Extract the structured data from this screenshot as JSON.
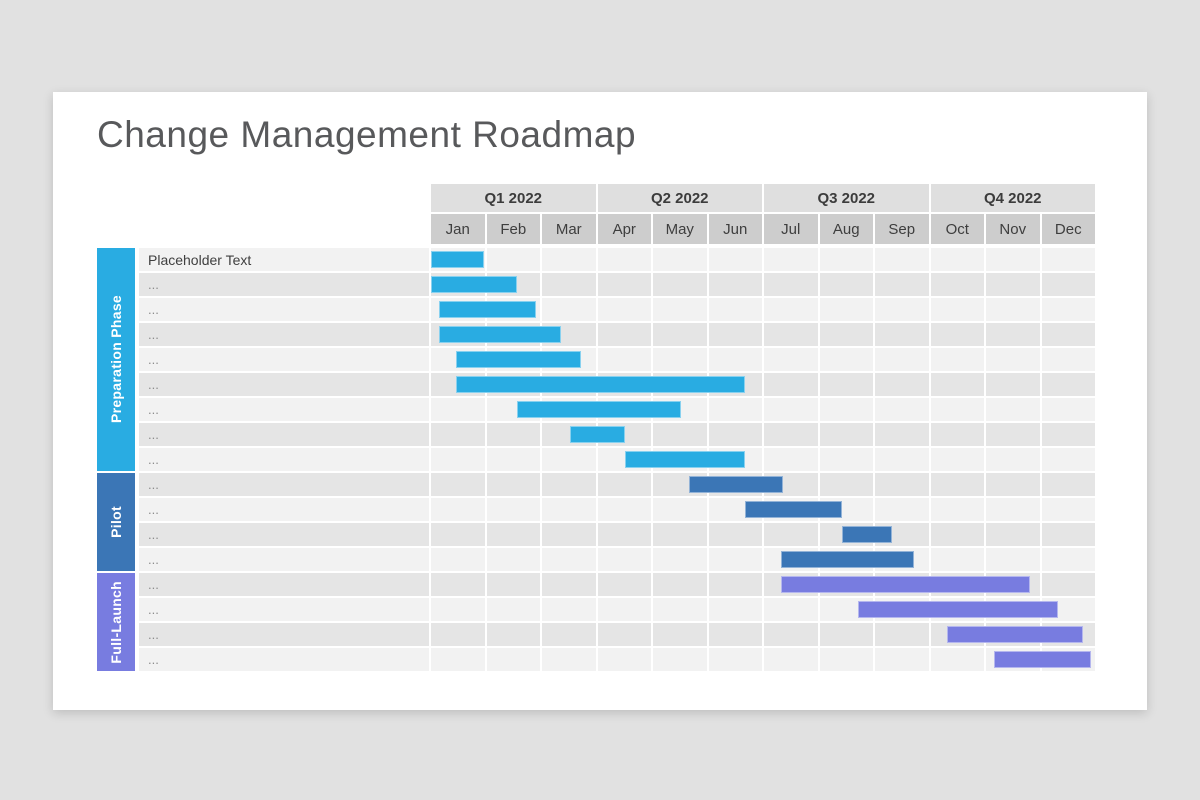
{
  "page": {
    "background": "#e1e1e1"
  },
  "slide": {
    "title": "Change Management Roadmap",
    "title_color": "#58595b",
    "background": "#ffffff"
  },
  "colors": {
    "quarter_header_bg": "#dfdfdf",
    "month_header_bg": "#cdcdcd",
    "row_odd_bg": "#f2f2f2",
    "row_even_bg": "#e5e5e5",
    "header_text": "#3c3c3c",
    "label_text_first": "#3f3f3f",
    "label_text_rest": "#8c8c8c"
  },
  "chart_data": {
    "type": "bar",
    "subtype": "gantt",
    "title": "Change Management Roadmap",
    "x_axis": {
      "unit": "month",
      "range": [
        0,
        12
      ],
      "year": "2022"
    },
    "quarters": [
      "Q1 2022",
      "Q2 2022",
      "Q3 2022",
      "Q4 2022"
    ],
    "months": [
      "Jan",
      "Feb",
      "Mar",
      "Apr",
      "May",
      "Jun",
      "Jul",
      "Aug",
      "Sep",
      "Oct",
      "Nov",
      "Dec"
    ],
    "phases": [
      {
        "name": "Preparation Phase",
        "color": "#29ace2",
        "row_start": 0,
        "row_count": 9
      },
      {
        "name": "Pilot",
        "color": "#3b76b6",
        "row_start": 9,
        "row_count": 4
      },
      {
        "name": "Full-Launch",
        "color": "#787ce0",
        "row_start": 13,
        "row_count": 4
      }
    ],
    "tasks": [
      {
        "label": "Placeholder Text",
        "phase": 0,
        "start": 0.0,
        "end": 0.95
      },
      {
        "label": "...",
        "phase": 0,
        "start": 0.0,
        "end": 1.55
      },
      {
        "label": "...",
        "phase": 0,
        "start": 0.15,
        "end": 1.9
      },
      {
        "label": "...",
        "phase": 0,
        "start": 0.15,
        "end": 2.35
      },
      {
        "label": "...",
        "phase": 0,
        "start": 0.45,
        "end": 2.7
      },
      {
        "label": "...",
        "phase": 0,
        "start": 0.45,
        "end": 5.65
      },
      {
        "label": "...",
        "phase": 0,
        "start": 1.55,
        "end": 4.5
      },
      {
        "label": "...",
        "phase": 0,
        "start": 2.5,
        "end": 3.5
      },
      {
        "label": "...",
        "phase": 0,
        "start": 3.5,
        "end": 5.65
      },
      {
        "label": "...",
        "phase": 1,
        "start": 4.65,
        "end": 6.35
      },
      {
        "label": "...",
        "phase": 1,
        "start": 5.65,
        "end": 7.4
      },
      {
        "label": "...",
        "phase": 1,
        "start": 7.4,
        "end": 8.3
      },
      {
        "label": "...",
        "phase": 1,
        "start": 6.3,
        "end": 8.7
      },
      {
        "label": "...",
        "phase": 2,
        "start": 6.3,
        "end": 10.8
      },
      {
        "label": "...",
        "phase": 2,
        "start": 7.7,
        "end": 11.3
      },
      {
        "label": "...",
        "phase": 2,
        "start": 9.3,
        "end": 11.75
      },
      {
        "label": "...",
        "phase": 2,
        "start": 10.15,
        "end": 11.9
      }
    ],
    "legend": "none",
    "grid": "cell-matrix"
  }
}
